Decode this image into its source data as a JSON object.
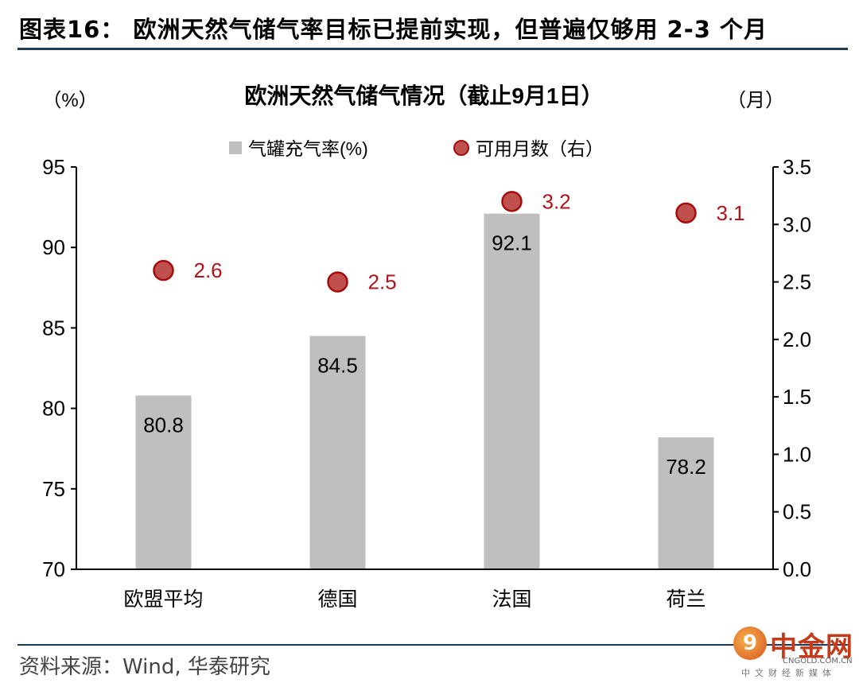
{
  "figure_title": "图表16： 欧洲天然气储气率目标已提前实现，但普遍仅够用 2-3 个月",
  "source": "资料来源：Wind, 华泰研究",
  "logo": {
    "name": "中金网",
    "domain": "CNGOLD.COM.CN",
    "subtitle": "中文财经新媒体",
    "mark": "9"
  },
  "colors": {
    "bar": "#bfbfbf",
    "marker_fill": "#c0504d",
    "marker_edge": "#a50d0d",
    "marker_label": "#b0141a",
    "rule": "#1f3b5b"
  },
  "chart_data": {
    "type": "bar",
    "title": "欧洲天然气储气情况（截止9月1日）",
    "left_unit": "（%）",
    "right_unit": "（月）",
    "categories": [
      "欧盟平均",
      "德国",
      "法国",
      "荷兰"
    ],
    "series": [
      {
        "name": "气罐充气率(%)",
        "type": "bar",
        "axis": "left",
        "values": [
          80.8,
          84.5,
          92.1,
          78.2
        ]
      },
      {
        "name": "可用月数（右）",
        "type": "scatter",
        "axis": "right",
        "values": [
          2.6,
          2.5,
          3.2,
          3.1
        ]
      }
    ],
    "y_left": {
      "min": 70,
      "max": 95,
      "ticks": [
        70,
        75,
        80,
        85,
        90,
        95
      ]
    },
    "y_right": {
      "min": 0.0,
      "max": 3.5,
      "ticks": [
        "0.0",
        "0.5",
        "1.0",
        "1.5",
        "2.0",
        "2.5",
        "3.0",
        "3.5"
      ]
    },
    "legend_position": "top-center",
    "grid": false
  }
}
